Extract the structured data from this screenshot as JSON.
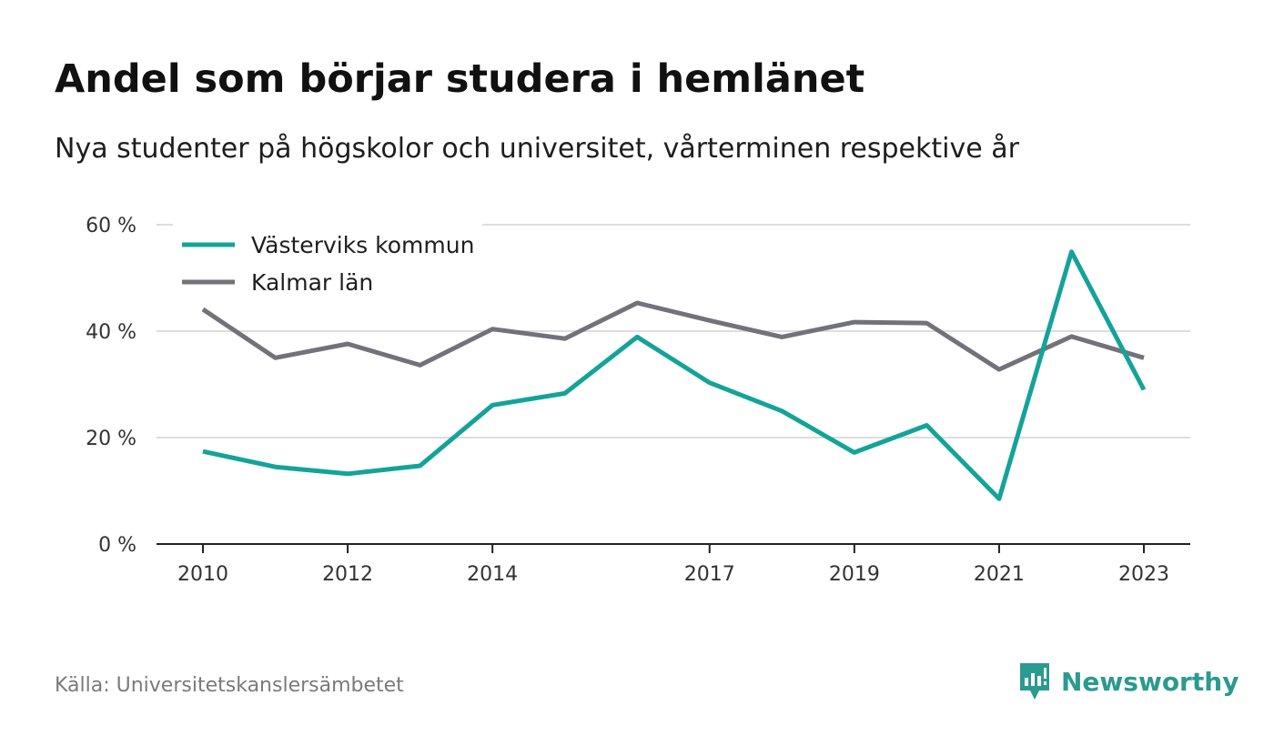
{
  "header": {
    "title": "Andel som börjar studera i hemlänet",
    "subtitle": "Nya studenter på högskolor och universitet, vårterminen respektive år"
  },
  "footer": {
    "source": "Källa: Universitetskanslersämbetet",
    "brand": "Newsworthy",
    "brand_icon": "newsworthy-logo-icon"
  },
  "colors": {
    "vastervik": "#14a398",
    "kalmar": "#737179",
    "grid": "#dddddd",
    "axis": "#222222",
    "brand": "#2b9a8f"
  },
  "chart_data": {
    "type": "line",
    "x": [
      2010,
      2011,
      2012,
      2013,
      2014,
      2015,
      2016,
      2017,
      2018,
      2019,
      2020,
      2021,
      2022,
      2023
    ],
    "x_tick_labels": [
      "2010",
      "2012",
      "2014",
      "2017",
      "2019",
      "2021",
      "2023"
    ],
    "y_tick_labels": [
      "0 %",
      "20 %",
      "40 %",
      "60 %"
    ],
    "y_ticks": [
      0,
      20,
      40,
      60
    ],
    "ylim": [
      0,
      60
    ],
    "grid": true,
    "legend_position": "top-left",
    "series": [
      {
        "name": "Västerviks kommun",
        "values": [
          17.4,
          14.5,
          13.2,
          14.7,
          26.1,
          28.3,
          38.9,
          30.3,
          25.0,
          17.2,
          22.3,
          8.5,
          54.9,
          29.0
        ]
      },
      {
        "name": "Kalmar län",
        "values": [
          44.1,
          35.0,
          37.6,
          33.6,
          40.4,
          38.6,
          45.3,
          42.0,
          38.9,
          41.7,
          41.5,
          32.8,
          39.0,
          35.0
        ]
      }
    ]
  }
}
